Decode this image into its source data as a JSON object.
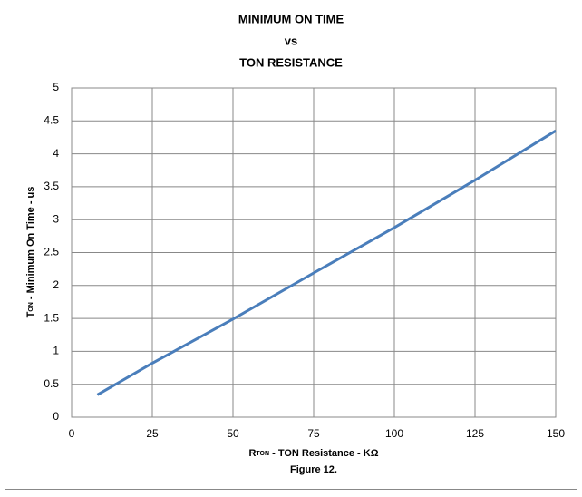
{
  "chart_data": {
    "type": "line",
    "title": [
      "MINIMUM ON TIME",
      "vs",
      "TON RESISTANCE"
    ],
    "ylabel": {
      "main": "T",
      "sub": "ON",
      "rest": " - Minimum  On Time - us"
    },
    "xlabel": {
      "main": "R",
      "sub": "TON",
      "rest": " - TON  Resistance  - KΩ"
    },
    "caption": "Figure 12.",
    "x": [
      8,
      25,
      50,
      75,
      100,
      125,
      150
    ],
    "series": [
      {
        "name": "Minimum On Time",
        "color": "#4a7ebb",
        "values": [
          0.34,
          0.82,
          1.49,
          2.19,
          2.88,
          3.6,
          4.35
        ]
      }
    ],
    "xlim": [
      0,
      150
    ],
    "xticks": [
      0,
      25,
      50,
      75,
      100,
      125,
      150
    ],
    "ylim": [
      0,
      5
    ],
    "yticks": [
      0,
      0.5,
      1,
      1.5,
      2,
      2.5,
      3,
      3.5,
      4,
      4.5,
      5
    ],
    "grid": true
  }
}
